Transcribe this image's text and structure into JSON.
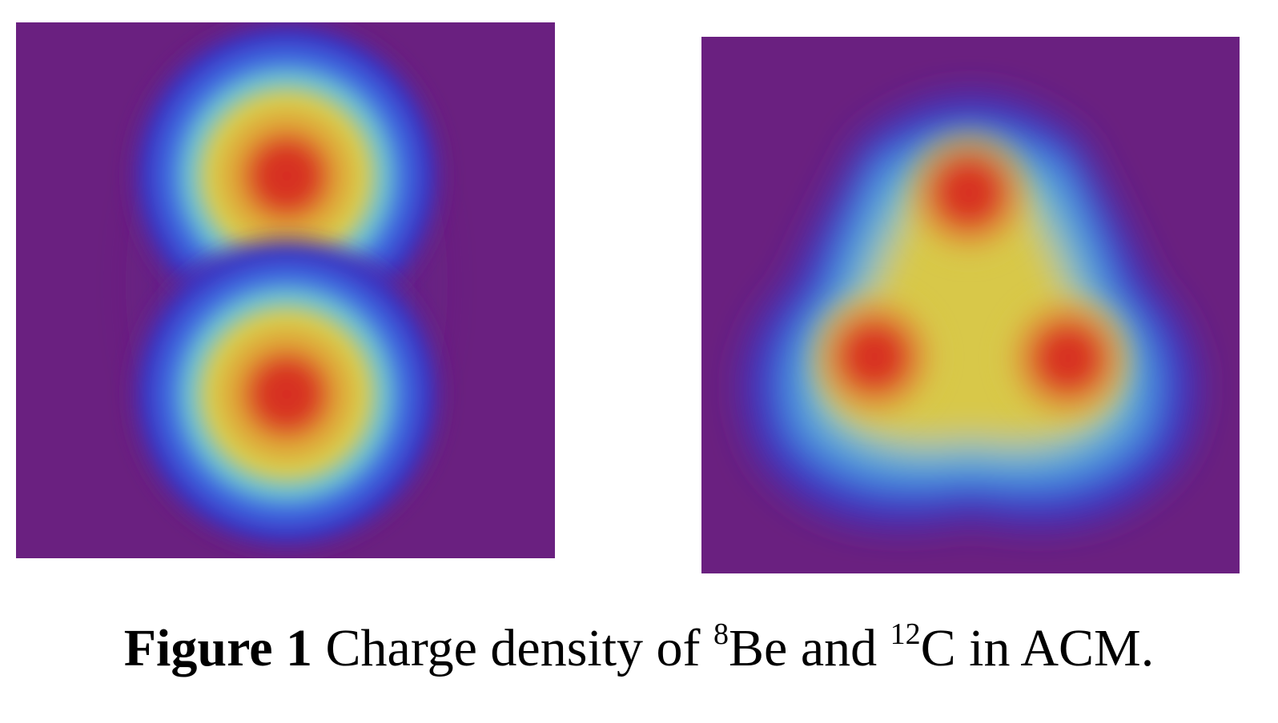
{
  "colors": {
    "background_purple": "#6a2080",
    "outer_blue": "#3a3ccf",
    "mid_cyan": "#5bb9d8",
    "mid_yellow": "#d8c84a",
    "core_red": "#d72a23"
  },
  "caption": {
    "label": "Figure 1",
    "text_before": " Charge density of ",
    "sup_be": "8",
    "be": "Be",
    "middle": " and ",
    "sup_c": "12",
    "c_text": "C in ACM."
  }
}
